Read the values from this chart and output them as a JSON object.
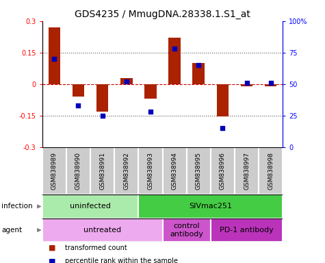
{
  "title": "GDS4235 / MmugDNA.28338.1.S1_at",
  "samples": [
    "GSM838989",
    "GSM838990",
    "GSM838991",
    "GSM838992",
    "GSM838993",
    "GSM838994",
    "GSM838995",
    "GSM838996",
    "GSM838997",
    "GSM838998"
  ],
  "transformed_count": [
    0.27,
    -0.06,
    -0.13,
    0.03,
    -0.07,
    0.22,
    0.1,
    -0.155,
    -0.01,
    -0.01
  ],
  "percentile_rank": [
    70,
    33,
    25,
    52,
    28,
    78,
    65,
    15,
    51,
    51
  ],
  "ylim_left": [
    -0.3,
    0.3
  ],
  "ylim_right": [
    0,
    100
  ],
  "yticks_left": [
    -0.3,
    -0.15,
    0.0,
    0.15,
    0.3
  ],
  "yticks_right": [
    0,
    25,
    50,
    75,
    100
  ],
  "ytick_labels_right": [
    "0",
    "25",
    "50",
    "75",
    "100%"
  ],
  "bar_color": "#aa2200",
  "scatter_color": "#0000bb",
  "zero_line_color": "#cc0000",
  "dotted_line_color": "#555555",
  "sample_bg_color": "#cccccc",
  "sample_border_color": "#ffffff",
  "infection_groups": [
    {
      "label": "uninfected",
      "start": 0,
      "end": 4,
      "color": "#aaeaaa"
    },
    {
      "label": "SIVmac251",
      "start": 4,
      "end": 10,
      "color": "#44cc44"
    }
  ],
  "agent_groups": [
    {
      "label": "untreated",
      "start": 0,
      "end": 5,
      "color": "#eeaaee"
    },
    {
      "label": "control\nantibody",
      "start": 5,
      "end": 7,
      "color": "#cc55cc"
    },
    {
      "label": "PD-1 antibody",
      "start": 7,
      "end": 10,
      "color": "#bb33bb"
    }
  ],
  "infection_label": "infection",
  "agent_label": "agent",
  "legend_items": [
    "transformed count",
    "percentile rank within the sample"
  ],
  "title_fontsize": 10,
  "tick_label_fontsize": 7,
  "sample_fontsize": 6.5,
  "group_fontsize": 8,
  "legend_fontsize": 7,
  "label_fontsize": 7.5
}
